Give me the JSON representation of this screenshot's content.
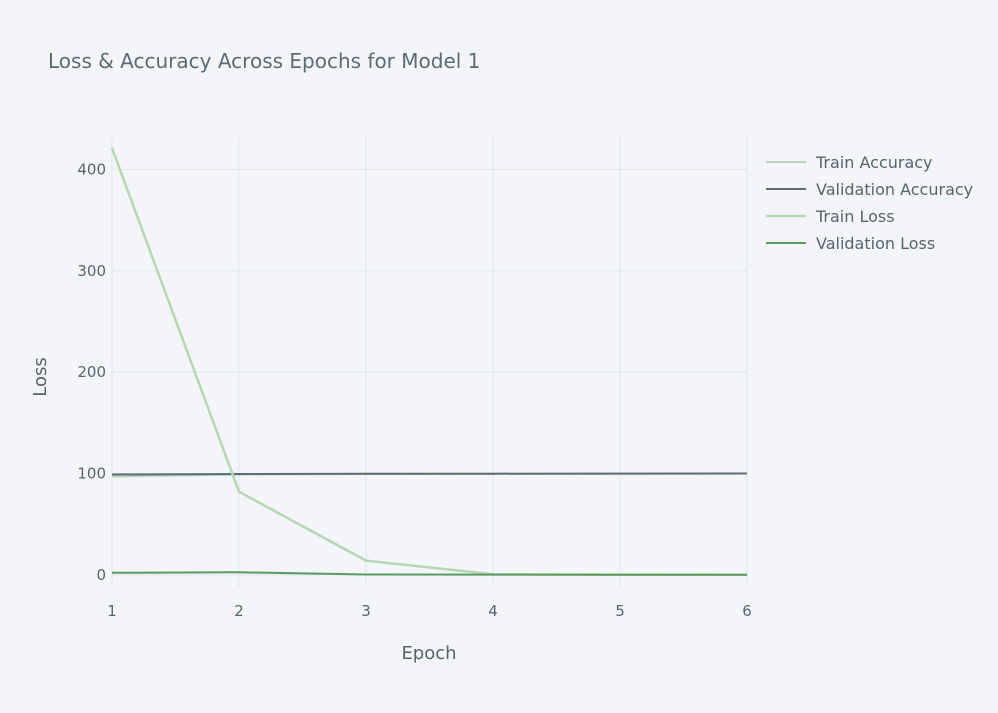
{
  "chart_data": {
    "type": "line",
    "title": "Loss & Accuracy Across Epochs for Model 1",
    "xlabel": "Epoch",
    "ylabel": "Loss",
    "xlim": [
      1,
      6
    ],
    "ylim": [
      -12,
      432
    ],
    "x_ticks": [
      1,
      2,
      3,
      4,
      5,
      6
    ],
    "y_ticks": [
      0,
      100,
      200,
      300,
      400
    ],
    "grid": true,
    "legend_placement": "top-right",
    "x": [
      1,
      2,
      3,
      4,
      5,
      6
    ],
    "series": [
      {
        "name": "Train Accuracy",
        "color": "#b9d2b9",
        "width": 2,
        "values": [
          97,
          99,
          99.5,
          99.8,
          99.9,
          100
        ]
      },
      {
        "name": "Validation Accuracy",
        "color": "#5d6d77",
        "width": 2,
        "values": [
          99,
          99.5,
          99.7,
          99.8,
          99.9,
          100
        ]
      },
      {
        "name": "Train Loss",
        "color": "#b7d6b3",
        "width": 2.5,
        "values": [
          421,
          82,
          14,
          0.5,
          0.2,
          0.1
        ]
      },
      {
        "name": "Validation Loss",
        "color": "#5a9a63",
        "width": 2,
        "values": [
          2,
          2.5,
          0.3,
          0.2,
          0.1,
          0.1
        ]
      }
    ]
  }
}
